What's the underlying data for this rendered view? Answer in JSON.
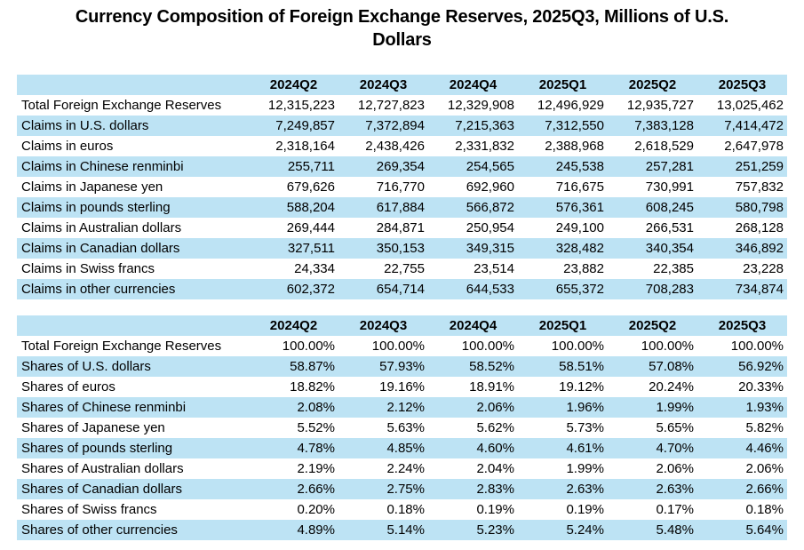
{
  "title": {
    "full": "Currency Composition of Foreign Exchange Reserves, 2025Q3, Millions of U.S. Dollars",
    "line1": "Currency Composition of Foreign Exchange Reserves, 2025Q3, Millions of U.S.",
    "line2": "Dollars"
  },
  "colors": {
    "stripe_blue": "#BDE3F4",
    "row_white": "#FFFFFF",
    "text": "#000000"
  },
  "columns": [
    "2024Q2",
    "2024Q3",
    "2024Q4",
    "2025Q1",
    "2025Q2",
    "2025Q3"
  ],
  "claims_table": {
    "rows": [
      {
        "label": "Total Foreign Exchange Reserves",
        "values": [
          "12,315,223",
          "12,727,823",
          "12,329,908",
          "12,496,929",
          "12,935,727",
          "13,025,462"
        ]
      },
      {
        "label": "Claims in U.S. dollars",
        "values": [
          "7,249,857",
          "7,372,894",
          "7,215,363",
          "7,312,550",
          "7,383,128",
          "7,414,472"
        ]
      },
      {
        "label": "Claims in euros",
        "values": [
          "2,318,164",
          "2,438,426",
          "2,331,832",
          "2,388,968",
          "2,618,529",
          "2,647,978"
        ]
      },
      {
        "label": "Claims in Chinese renminbi",
        "values": [
          "255,711",
          "269,354",
          "254,565",
          "245,538",
          "257,281",
          "251,259"
        ]
      },
      {
        "label": "Claims in Japanese yen",
        "values": [
          "679,626",
          "716,770",
          "692,960",
          "716,675",
          "730,991",
          "757,832"
        ]
      },
      {
        "label": "Claims in pounds sterling",
        "values": [
          "588,204",
          "617,884",
          "566,872",
          "576,361",
          "608,245",
          "580,798"
        ]
      },
      {
        "label": "Claims in Australian dollars",
        "values": [
          "269,444",
          "284,871",
          "250,954",
          "249,100",
          "266,531",
          "268,128"
        ]
      },
      {
        "label": "Claims in Canadian dollars",
        "values": [
          "327,511",
          "350,153",
          "349,315",
          "328,482",
          "340,354",
          "346,892"
        ]
      },
      {
        "label": "Claims in Swiss francs",
        "values": [
          "24,334",
          "22,755",
          "23,514",
          "23,882",
          "22,385",
          "23,228"
        ]
      },
      {
        "label": "Claims in other currencies",
        "values": [
          "602,372",
          "654,714",
          "644,533",
          "655,372",
          "708,283",
          "734,874"
        ]
      }
    ]
  },
  "shares_table": {
    "rows": [
      {
        "label": "Total Foreign Exchange Reserves",
        "values": [
          "100.00%",
          "100.00%",
          "100.00%",
          "100.00%",
          "100.00%",
          "100.00%"
        ]
      },
      {
        "label": "Shares of U.S. dollars",
        "values": [
          "58.87%",
          "57.93%",
          "58.52%",
          "58.51%",
          "57.08%",
          "56.92%"
        ]
      },
      {
        "label": "Shares of euros",
        "values": [
          "18.82%",
          "19.16%",
          "18.91%",
          "19.12%",
          "20.24%",
          "20.33%"
        ]
      },
      {
        "label": "Shares of Chinese renminbi",
        "values": [
          "2.08%",
          "2.12%",
          "2.06%",
          "1.96%",
          "1.99%",
          "1.93%"
        ]
      },
      {
        "label": "Shares of Japanese yen",
        "values": [
          "5.52%",
          "5.63%",
          "5.62%",
          "5.73%",
          "5.65%",
          "5.82%"
        ]
      },
      {
        "label": "Shares of pounds sterling",
        "values": [
          "4.78%",
          "4.85%",
          "4.60%",
          "4.61%",
          "4.70%",
          "4.46%"
        ]
      },
      {
        "label": "Shares of Australian dollars",
        "values": [
          "2.19%",
          "2.24%",
          "2.04%",
          "1.99%",
          "2.06%",
          "2.06%"
        ]
      },
      {
        "label": "Shares of Canadian dollars",
        "values": [
          "2.66%",
          "2.75%",
          "2.83%",
          "2.63%",
          "2.63%",
          "2.66%"
        ]
      },
      {
        "label": "Shares of Swiss francs",
        "values": [
          "0.20%",
          "0.18%",
          "0.19%",
          "0.19%",
          "0.17%",
          "0.18%"
        ]
      },
      {
        "label": "Shares of other currencies",
        "values": [
          "4.89%",
          "5.14%",
          "5.23%",
          "5.24%",
          "5.48%",
          "5.64%"
        ]
      }
    ]
  }
}
